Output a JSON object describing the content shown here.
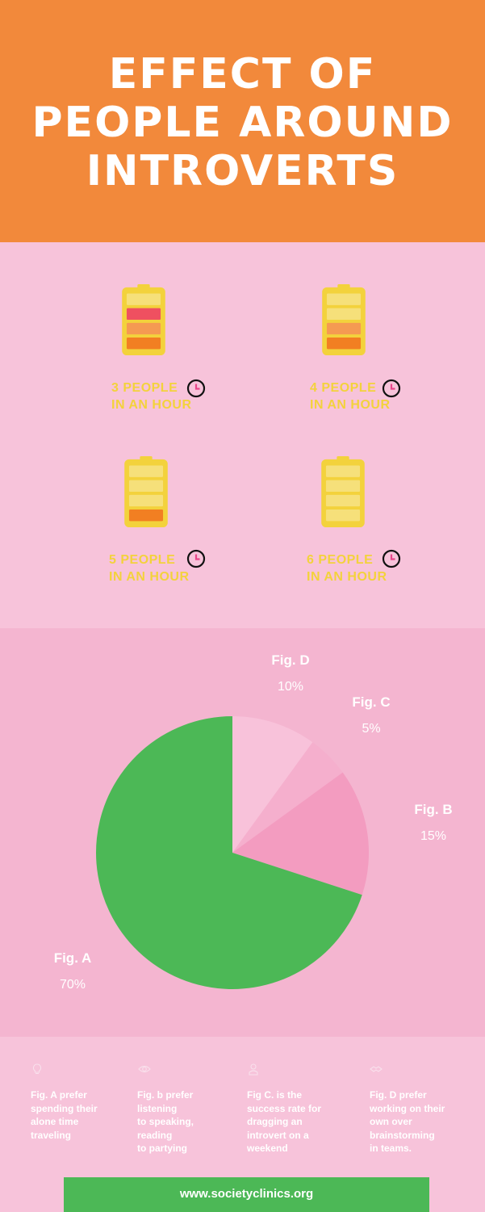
{
  "header": {
    "title_lines": [
      "EFFECT OF",
      "PEOPLE AROUND",
      "INTROVERTS"
    ]
  },
  "batteries": [
    {
      "line1": "3 PEOPLE",
      "line2": "IN AN HOUR",
      "icon": "battery-icon",
      "filled_bars": 3,
      "bar_colors": [
        "#ef5060",
        "#f59a52",
        "#f27f22"
      ]
    },
    {
      "line1": "4 PEOPLE",
      "line2": "IN AN HOUR",
      "icon": "battery-icon",
      "filled_bars": 2,
      "bar_colors": [
        "#f59a52",
        "#f27f22"
      ]
    },
    {
      "line1": "5 PEOPLE",
      "line2": "IN AN HOUR",
      "icon": "battery-icon",
      "filled_bars": 1,
      "bar_colors": [
        "#f27f22"
      ]
    },
    {
      "line1": "6 PEOPLE",
      "line2": "IN AN HOUR",
      "icon": "battery-icon",
      "filled_bars": 0,
      "bar_colors": []
    }
  ],
  "clock_icon": "clock-icon",
  "chart_data": {
    "type": "pie",
    "slices": [
      {
        "label": "Fig. A",
        "value": 70,
        "display": "70%",
        "color": "#4cb856"
      },
      {
        "label": "Fig. B",
        "value": 15,
        "display": "15%",
        "color": "#f39cc0"
      },
      {
        "label": "Fig. C",
        "value": 5,
        "display": "5%",
        "color": "#f5afcd"
      },
      {
        "label": "Fig. D",
        "value": 10,
        "display": "10%",
        "color": "#f8c2da"
      }
    ]
  },
  "descriptions": [
    {
      "icon": "lightbulb-icon",
      "text": "Fig. A prefer\nspending their\nalone time\ntraveling"
    },
    {
      "icon": "eye-icon",
      "text": "Fig.  b prefer\nlistening\nto speaking,\nreading\nto partying"
    },
    {
      "icon": "person-icon",
      "text": "Fig C. is the\nsuccess rate for\ndragging an\nintrovert on a\nweekend"
    },
    {
      "icon": "handshake-icon",
      "text": "Fig. D prefer\nworking on their\nown over\nbrainstorming\nin teams."
    }
  ],
  "footer": {
    "url": "www.societyclinics.org"
  },
  "colors": {
    "header_bg": "#f2893b",
    "pink_bg": "#f7c3da",
    "pie_bg": "#f4b5d0",
    "battery_yellow": "#f3d23c",
    "battery_empty": "#f6e07a",
    "footer_green": "#4cb856"
  }
}
